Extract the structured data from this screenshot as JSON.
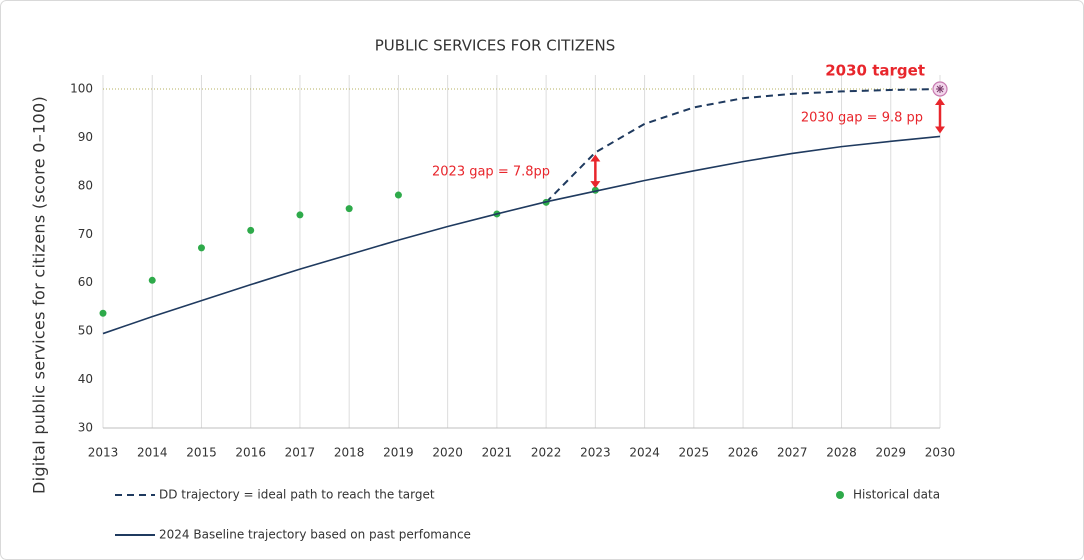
{
  "chart_data": {
    "type": "line",
    "title": "PUBLIC SERVICES FOR CITIZENS",
    "y_label": "Digital public services for citizens (score 0–100)",
    "x": [
      2013,
      2014,
      2015,
      2016,
      2017,
      2018,
      2019,
      2020,
      2021,
      2022,
      2023,
      2024,
      2025,
      2026,
      2027,
      2028,
      2029,
      2030
    ],
    "xlim": [
      2013,
      2030
    ],
    "xticks": [
      2013,
      2014,
      2015,
      2016,
      2017,
      2018,
      2019,
      2020,
      2021,
      2022,
      2023,
      2024,
      2025,
      2026,
      2027,
      2028,
      2029,
      2030
    ],
    "ylim": [
      30,
      100
    ],
    "yticks": [
      30,
      40,
      50,
      60,
      70,
      80,
      90,
      100
    ],
    "grid": "x",
    "target": 100,
    "target_color": "#b5b060",
    "series": [
      {
        "name": "DD trajectory = ideal path to reach the target",
        "color": "#1f3a5f",
        "kind": "line",
        "dashed": true,
        "values": [
          null,
          null,
          null,
          null,
          null,
          null,
          null,
          null,
          null,
          76.6,
          86.9,
          92.8,
          96.2,
          98.1,
          99.0,
          99.5,
          99.8,
          100
        ]
      },
      {
        "name": "Historical data",
        "color": "#2eaa4a",
        "kind": "scatter",
        "dashed": false,
        "values": [
          53.7,
          60.5,
          67.2,
          70.8,
          74.0,
          75.3,
          78.1,
          null,
          74.2,
          76.6,
          79.1,
          null,
          null,
          null,
          null,
          null,
          null,
          null
        ]
      },
      {
        "name": "2024 Baseline trajectory based on past perfomance",
        "color": "#1f3a5f",
        "kind": "line",
        "dashed": false,
        "values": [
          49.5,
          53.0,
          56.3,
          59.6,
          62.8,
          65.8,
          68.8,
          71.6,
          74.2,
          76.7,
          78.9,
          81.1,
          83.1,
          85.0,
          86.7,
          88.1,
          89.2,
          90.2
        ]
      }
    ],
    "annotations": [
      "2030 target",
      "2023 gap = 7.8pp",
      "2030 gap = 9.8 pp"
    ],
    "annotation_color": "#e8262c"
  }
}
